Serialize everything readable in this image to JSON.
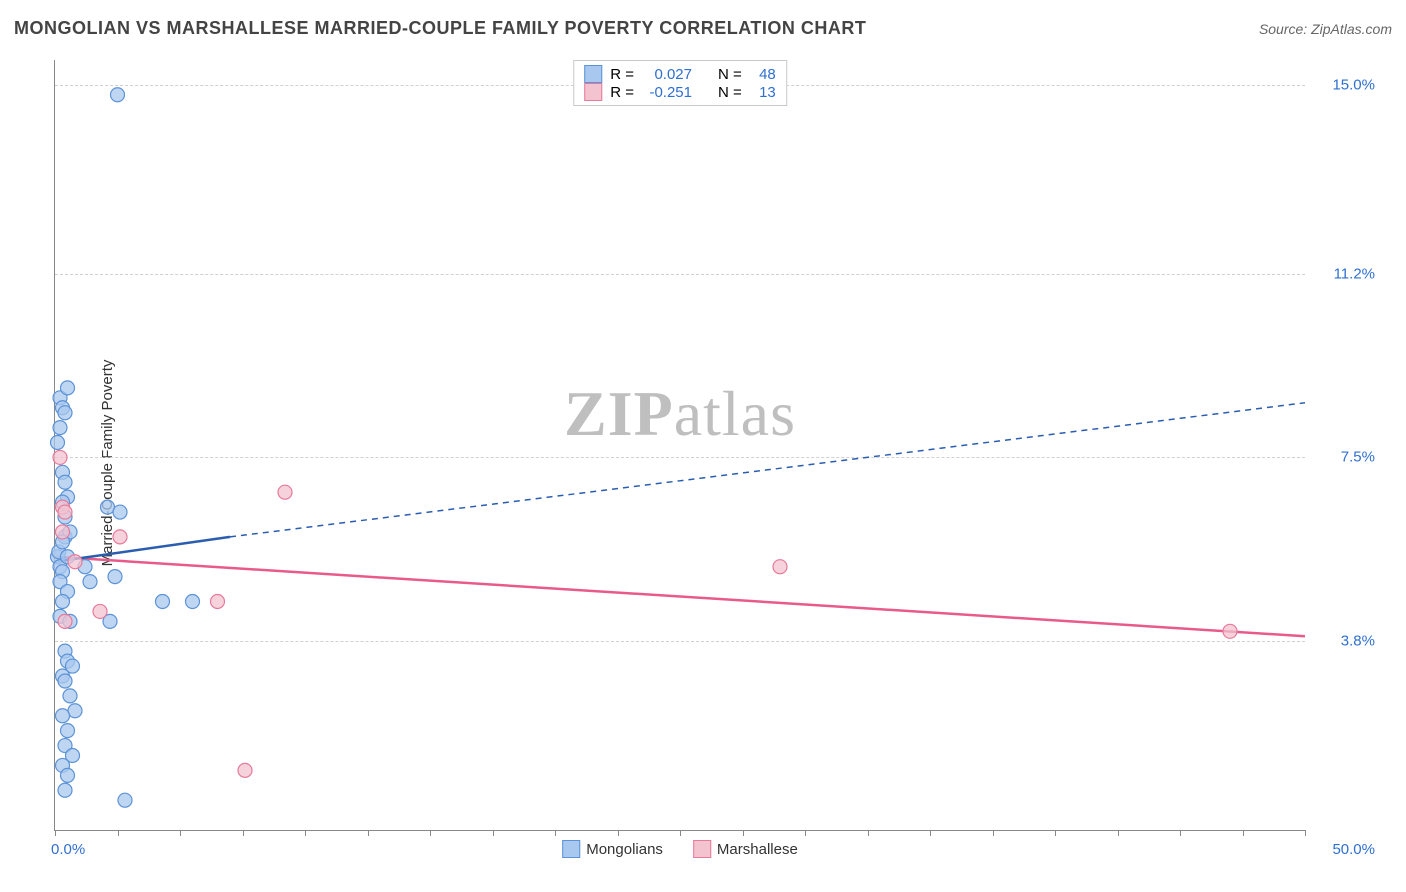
{
  "title": "MONGOLIAN VS MARSHALLESE MARRIED-COUPLE FAMILY POVERTY CORRELATION CHART",
  "source_label": "Source: ZipAtlas.com",
  "watermark": {
    "light": "ZIP",
    "rest": "atlas"
  },
  "chart": {
    "type": "scatter",
    "ylabel": "Married-Couple Family Poverty",
    "xlim": [
      0,
      50
    ],
    "ylim": [
      0,
      15.5
    ],
    "x_tick_labels": {
      "min": "0.0%",
      "max": "50.0%"
    },
    "y_tick_labels": [
      "3.8%",
      "7.5%",
      "11.2%",
      "15.0%"
    ],
    "y_tick_values": [
      3.8,
      7.5,
      11.2,
      15.0
    ],
    "x_minor_ticks": [
      0,
      2.5,
      5,
      7.5,
      10,
      12.5,
      15,
      17.5,
      20,
      22.5,
      25,
      27.5,
      30,
      32.5,
      35,
      37.5,
      40,
      42.5,
      45,
      47.5,
      50
    ],
    "grid_color": "#d0d0d0",
    "axis_color": "#888888",
    "series": [
      {
        "name": "Mongolians",
        "color_fill": "#a9c8ef",
        "color_stroke": "#5c93d6",
        "marker_r": 7,
        "stats": {
          "R": "0.027",
          "N": "48"
        },
        "trend": {
          "solid": {
            "x1": 0,
            "y1": 5.4,
            "x2": 7,
            "y2": 5.9
          },
          "dashed": {
            "x1": 7,
            "y1": 5.9,
            "x2": 50,
            "y2": 8.6
          },
          "color": "#2a5db0"
        },
        "points": [
          [
            0.1,
            5.5
          ],
          [
            0.2,
            5.3
          ],
          [
            0.15,
            5.6
          ],
          [
            0.3,
            5.2
          ],
          [
            0.2,
            5.0
          ],
          [
            0.4,
            5.9
          ],
          [
            0.5,
            4.8
          ],
          [
            0.3,
            4.6
          ],
          [
            0.2,
            4.3
          ],
          [
            0.6,
            4.2
          ],
          [
            0.4,
            3.6
          ],
          [
            0.5,
            3.4
          ],
          [
            0.7,
            3.3
          ],
          [
            0.3,
            3.1
          ],
          [
            0.4,
            3.0
          ],
          [
            0.6,
            2.7
          ],
          [
            0.8,
            2.4
          ],
          [
            0.3,
            2.3
          ],
          [
            0.5,
            2.0
          ],
          [
            0.4,
            1.7
          ],
          [
            0.7,
            1.5
          ],
          [
            0.3,
            1.3
          ],
          [
            0.5,
            1.1
          ],
          [
            0.4,
            0.8
          ],
          [
            2.8,
            0.6
          ],
          [
            0.2,
            8.7
          ],
          [
            0.3,
            8.5
          ],
          [
            0.4,
            8.4
          ],
          [
            0.2,
            8.1
          ],
          [
            0.5,
            6.7
          ],
          [
            0.3,
            6.6
          ],
          [
            0.4,
            6.3
          ],
          [
            0.6,
            6.0
          ],
          [
            0.3,
            5.8
          ],
          [
            0.5,
            5.5
          ],
          [
            1.2,
            5.3
          ],
          [
            1.4,
            5.0
          ],
          [
            2.1,
            6.5
          ],
          [
            2.6,
            6.4
          ],
          [
            2.4,
            5.1
          ],
          [
            4.3,
            4.6
          ],
          [
            5.5,
            4.6
          ],
          [
            2.2,
            4.2
          ],
          [
            0.3,
            7.2
          ],
          [
            0.4,
            7.0
          ],
          [
            0.5,
            8.9
          ],
          [
            0.1,
            7.8
          ],
          [
            2.5,
            14.8
          ]
        ]
      },
      {
        "name": "Marshallese",
        "color_fill": "#f3c3d0",
        "color_stroke": "#e77a9a",
        "marker_r": 7,
        "stats": {
          "R": "-0.251",
          "N": "13"
        },
        "trend": {
          "solid": {
            "x1": 0,
            "y1": 5.5,
            "x2": 50,
            "y2": 3.9
          },
          "color": "#e85a8a"
        },
        "points": [
          [
            0.2,
            7.5
          ],
          [
            0.3,
            6.5
          ],
          [
            0.4,
            6.4
          ],
          [
            2.6,
            5.9
          ],
          [
            0.8,
            5.4
          ],
          [
            1.8,
            4.4
          ],
          [
            6.5,
            4.6
          ],
          [
            0.3,
            6.0
          ],
          [
            29.0,
            5.3
          ],
          [
            47.0,
            4.0
          ],
          [
            9.2,
            6.8
          ],
          [
            7.6,
            1.2
          ],
          [
            0.4,
            4.2
          ]
        ]
      }
    ],
    "legend_labels": [
      "Mongolians",
      "Marshallese"
    ],
    "stats_label_R": "R =",
    "stats_label_N": "N =",
    "stats_value_color": "#2f6fd0"
  }
}
